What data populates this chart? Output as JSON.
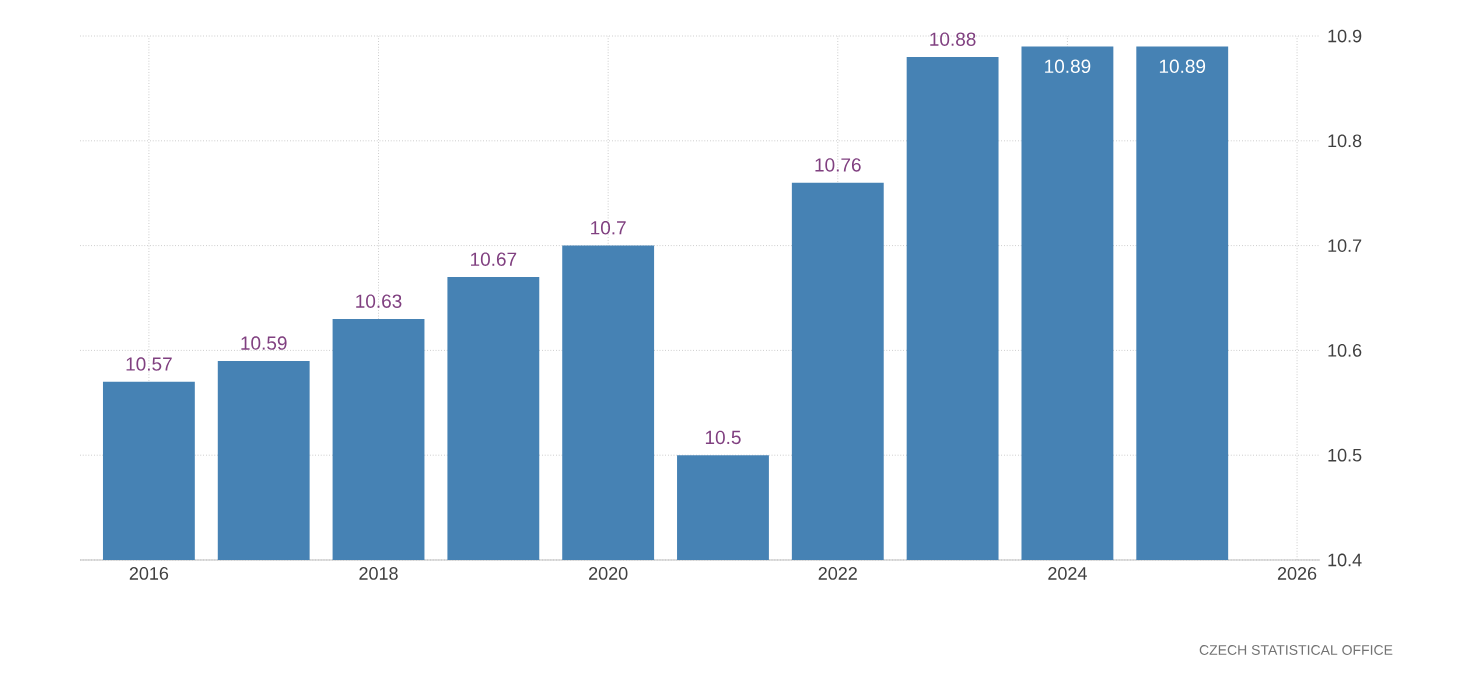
{
  "chart_data": {
    "type": "bar",
    "x": [
      2016,
      2017,
      2018,
      2019,
      2020,
      2021,
      2022,
      2023,
      2024,
      2025
    ],
    "values": [
      10.57,
      10.59,
      10.63,
      10.67,
      10.7,
      10.5,
      10.76,
      10.88,
      10.89,
      10.89
    ],
    "color": "#4682b4",
    "xlim": [
      2015.4,
      2026.2
    ],
    "xticks": [
      2016,
      2018,
      2020,
      2022,
      2024,
      2026
    ],
    "ylim": [
      10.4,
      10.9
    ],
    "yticks": [
      10.4,
      10.5,
      10.6,
      10.7,
      10.8,
      10.9
    ],
    "grid": true,
    "data_labels": true,
    "annotations": [
      "CZECH STATISTICAL OFFICE"
    ]
  }
}
